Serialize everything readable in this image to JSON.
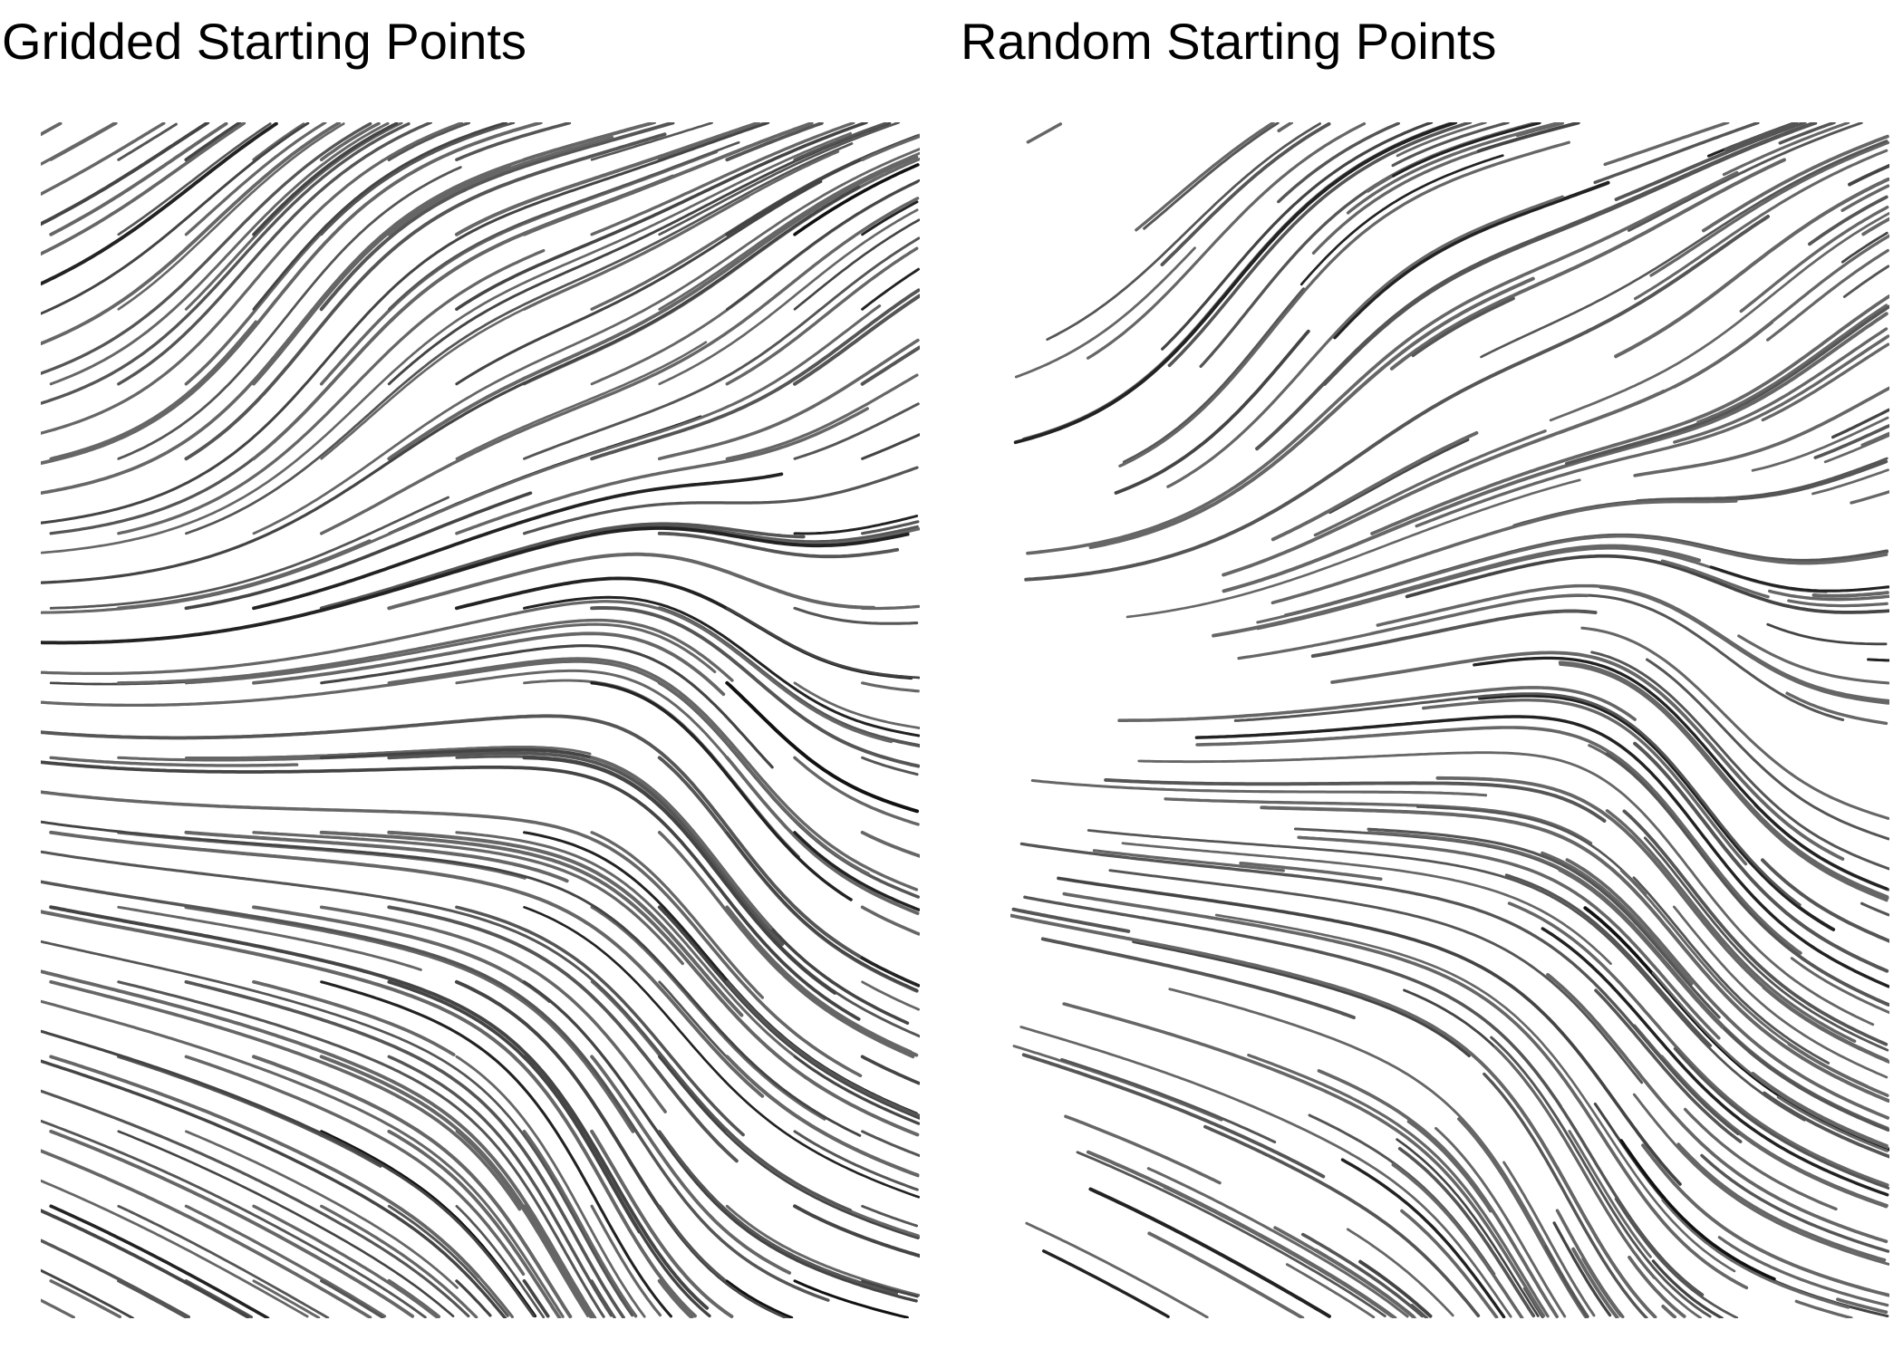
{
  "chart_data": [
    {
      "type": "streamline",
      "title": "Gridded Starting Points",
      "seeding": "grid",
      "xlim": [
        0,
        1
      ],
      "ylim": [
        0,
        1
      ],
      "grid": false,
      "axes_visible": false,
      "stroke_colors": [
        "#666666",
        "#555555",
        "#444444",
        "#222222",
        "#111111"
      ]
    },
    {
      "type": "streamline",
      "title": "Random Starting Points",
      "seeding": "random",
      "xlim": [
        0,
        1
      ],
      "ylim": [
        0,
        1
      ],
      "grid": false,
      "axes_visible": false,
      "stroke_colors": [
        "#666666",
        "#555555",
        "#444444",
        "#222222",
        "#111111"
      ]
    }
  ]
}
